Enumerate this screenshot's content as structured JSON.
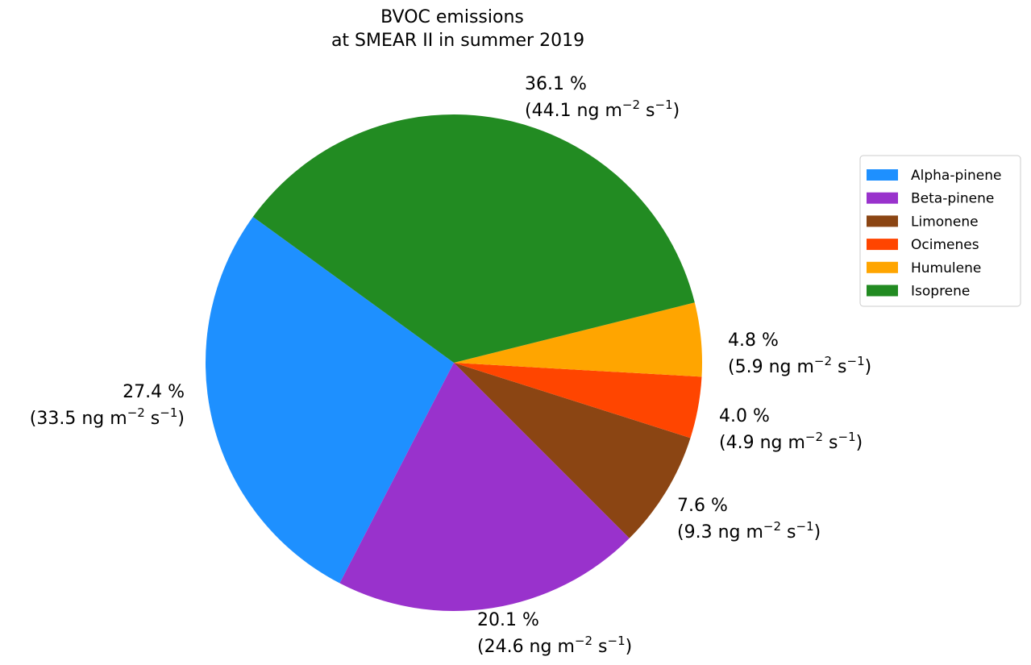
{
  "chart_data": {
    "type": "pie",
    "title_lines": [
      "BVOC emissions",
      "at SMEAR II in summer 2019"
    ],
    "legend_placement": "right",
    "unit_base": "ng m",
    "unit_exp1": "−2",
    "unit_mid": " s",
    "unit_exp2": "−1",
    "slices": [
      {
        "name": "Alpha-pinene",
        "percent": 27.4,
        "percent_label": "27.4 %",
        "value": 33.5,
        "value_label": "(33.5",
        "color": "#1e90ff"
      },
      {
        "name": "Beta-pinene",
        "percent": 20.1,
        "percent_label": "20.1 %",
        "value": 24.6,
        "value_label": "(24.6",
        "color": "#9932cc"
      },
      {
        "name": "Limonene",
        "percent": 7.6,
        "percent_label": "7.6 %",
        "value": 9.3,
        "value_label": "(9.3",
        "color": "#8b4513"
      },
      {
        "name": "Ocimenes",
        "percent": 4.0,
        "percent_label": "4.0 %",
        "value": 4.9,
        "value_label": "(4.9",
        "color": "#ff4500"
      },
      {
        "name": "Humulene",
        "percent": 4.8,
        "percent_label": "4.8 %",
        "value": 5.9,
        "value_label": "(5.9",
        "color": "#ffa500"
      },
      {
        "name": "Isoprene",
        "percent": 36.1,
        "percent_label": "36.1 %",
        "value": 44.1,
        "value_label": "(44.1",
        "color": "#228b22"
      }
    ]
  }
}
